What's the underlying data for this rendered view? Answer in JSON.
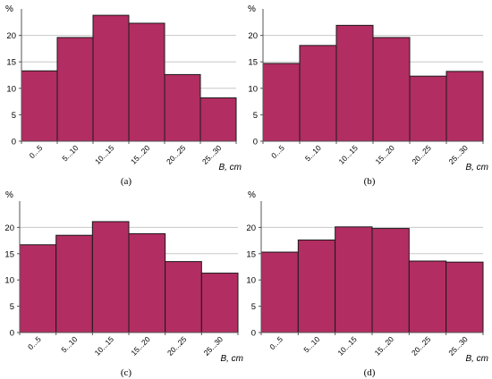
{
  "chart_data": [
    {
      "type": "bar",
      "panel_label": "(a)",
      "categories": [
        "0...5",
        "5...10",
        "10...15",
        "15...20",
        "20...25",
        "25...30"
      ],
      "values": [
        13.3,
        19.6,
        23.8,
        22.3,
        12.6,
        8.2
      ],
      "ylabel": "%",
      "xlabel": "B, cm",
      "ylim": [
        0,
        25
      ],
      "yticks": [
        0,
        5,
        10,
        15,
        20
      ],
      "grid": true,
      "bar_color": "#b22d62"
    },
    {
      "type": "bar",
      "panel_label": "(b)",
      "categories": [
        "0...5",
        "5...10",
        "10...15",
        "15...20",
        "20...25",
        "25...30"
      ],
      "values": [
        14.7,
        18.1,
        21.9,
        19.6,
        12.3,
        13.2
      ],
      "ylabel": "%",
      "xlabel": "B, cm",
      "ylim": [
        0,
        25
      ],
      "yticks": [
        0,
        5,
        10,
        15,
        20
      ],
      "grid": true,
      "bar_color": "#b22d62"
    },
    {
      "type": "bar",
      "panel_label": "(c)",
      "categories": [
        "0...5",
        "5...10",
        "10...15",
        "15...20",
        "20...25",
        "25...30"
      ],
      "values": [
        16.7,
        18.5,
        21.1,
        18.8,
        13.5,
        11.3
      ],
      "ylabel": "%",
      "xlabel": "B, cm",
      "ylim": [
        0,
        25
      ],
      "yticks": [
        0,
        5,
        10,
        15,
        20
      ],
      "grid": true,
      "bar_color": "#b22d62"
    },
    {
      "type": "bar",
      "panel_label": "(d)",
      "categories": [
        "0...5",
        "5...10",
        "10...15",
        "15...20",
        "20...25",
        "25...30"
      ],
      "values": [
        15.3,
        17.6,
        20.1,
        19.8,
        13.6,
        13.4
      ],
      "ylabel": "%",
      "xlabel": "B, cm",
      "ylim": [
        0,
        25
      ],
      "yticks": [
        0,
        5,
        10,
        15,
        20
      ],
      "grid": true,
      "bar_color": "#b22d62"
    }
  ]
}
